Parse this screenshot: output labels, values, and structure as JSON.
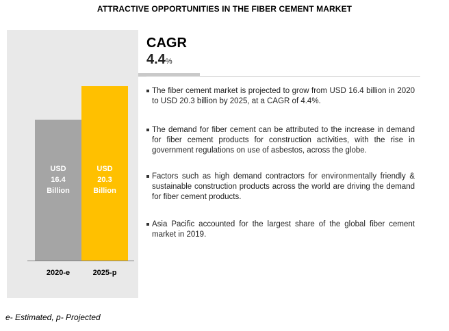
{
  "title": "ATTRACTIVE OPPORTUNITIES IN THE FIBER CEMENT MARKET",
  "cagr": {
    "label": "CAGR",
    "value": "4.4",
    "unit": "%"
  },
  "bullets": [
    "The fiber cement market is projected to grow from USD 16.4 billion in 2020 to USD 20.3 billion by 2025, at a CAGR of 4.4%.",
    "The demand for fiber cement can be attributed to the increase in demand for fiber cement products for construction activities, with the rise in government regulations on use of asbestos, across the globe.",
    "Factors such as high demand contractors for environmentally friendly & sustainable construction products across the world are driving the demand for fiber cement products.",
    "Asia Pacific accounted for the largest share of the global fiber cement market in 2019."
  ],
  "footnote": "e- Estimated, p- Projected",
  "colors": {
    "bar_2020": "#a5a5a5",
    "bar_2025": "#ffc000",
    "bar_text": "#ffffff"
  },
  "chart_data": {
    "type": "bar",
    "categories": [
      "2020-e",
      "2025-p"
    ],
    "values": [
      16.4,
      20.3
    ],
    "data_labels": [
      [
        "USD",
        "16.4",
        "Billion"
      ],
      [
        "USD",
        "20.3",
        "Billion"
      ]
    ],
    "ylim": [
      0,
      20.3
    ],
    "grid": false,
    "legend": "none"
  }
}
